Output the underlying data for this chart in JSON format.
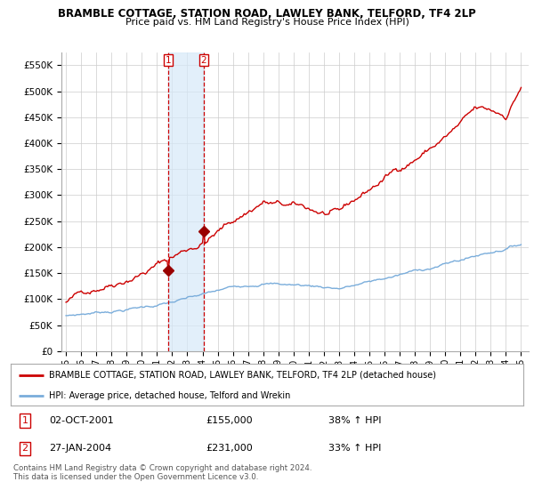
{
  "title": "BRAMBLE COTTAGE, STATION ROAD, LAWLEY BANK, TELFORD, TF4 2LP",
  "subtitle": "Price paid vs. HM Land Registry's House Price Index (HPI)",
  "ylabel_ticks": [
    "£0",
    "£50K",
    "£100K",
    "£150K",
    "£200K",
    "£250K",
    "£300K",
    "£350K",
    "£400K",
    "£450K",
    "£500K",
    "£550K"
  ],
  "ytick_values": [
    0,
    50000,
    100000,
    150000,
    200000,
    250000,
    300000,
    350000,
    400000,
    450000,
    500000,
    550000
  ],
  "ylim": [
    0,
    575000
  ],
  "line_color_red": "#cc0000",
  "line_color_blue": "#7aaddb",
  "shade_color": "#d6e9f8",
  "marker_color_red": "#990000",
  "sale1_year": 2001.75,
  "sale1_price": 155000,
  "sale2_year": 2004.08,
  "sale2_price": 231000,
  "legend_line1": "BRAMBLE COTTAGE, STATION ROAD, LAWLEY BANK, TELFORD, TF4 2LP (detached house)",
  "legend_line2": "HPI: Average price, detached house, Telford and Wrekin",
  "table_row1": [
    "1",
    "02-OCT-2001",
    "£155,000",
    "38% ↑ HPI"
  ],
  "table_row2": [
    "2",
    "27-JAN-2004",
    "£231,000",
    "33% ↑ HPI"
  ],
  "footnote": "Contains HM Land Registry data © Crown copyright and database right 2024.\nThis data is licensed under the Open Government Licence v3.0.",
  "background_color": "#ffffff",
  "grid_color": "#cccccc",
  "xlim_left": 1994.7,
  "xlim_right": 2025.5
}
